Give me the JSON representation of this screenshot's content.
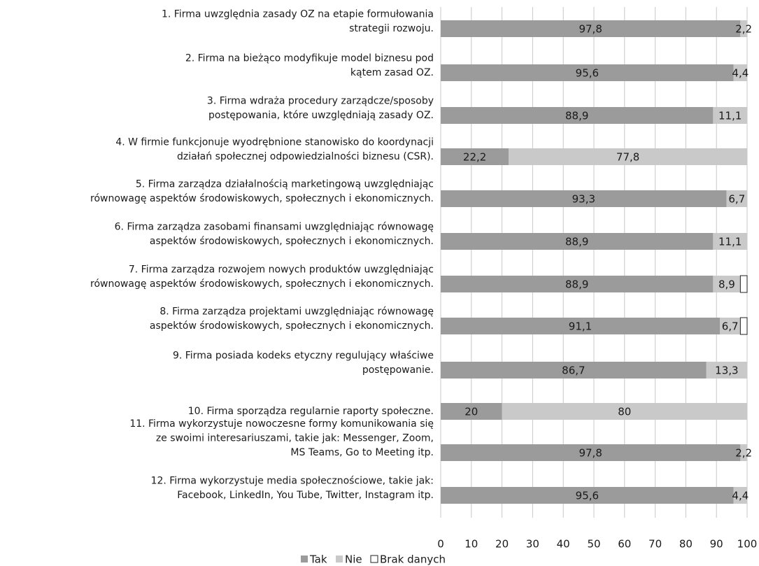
{
  "chart_data": {
    "type": "stacked_barh",
    "categories": [
      "1. Firma uwzględnia zasady OZ na etapie formułowania\nstrategii rozwoju.",
      "2. Firma na bieżąco modyfikuje model biznesu pod\nkątem zasad OZ.",
      "3. Firma wdraża procedury zarządcze/sposoby\npostępowania, które uwzględniają zasady OZ.",
      "4. W firmie funkcjonuje  wyodrębnione stanowisko do koordynacji\ndziałań społecznej odpowiedzialności biznesu (CSR).",
      "5. Firma zarządza działalnością marketingową uwzględniając\nrównowagę aspektów środowiskowych, społecznych i ekonomicznych.",
      "6. Firma zarządza zasobami finansami uwzględniając równowagę\naspektów środowiskowych, społecznych i ekonomicznych.",
      "7. Firma zarządza rozwojem nowych produktów uwzględniając\nrównowagę aspektów środowiskowych, społecznych i ekonomicznych.",
      "8. Firma zarządza projektami uwzględniając równowagę\naspektów środowiskowych, społecznych i ekonomicznych.",
      "9.  Firma posiada kodeks etyczny regulujący właściwe\npostępowanie.",
      "10. Firma sporządza regularnie raporty społeczne.",
      "11. Firma wykorzystuje nowoczesne formy komunikowania się\nze swoimi interesariuszami, takie jak: Messenger, Zoom,\nMS Teams, Go to Meeting itp.",
      "12. Firma wykorzystuje media społecznościowe, takie jak:\nFacebook, LinkedIn, You Tube, Twitter, Instagram itp."
    ],
    "series": [
      {
        "name": "Tak",
        "color": "#9b9b9b",
        "values": [
          97.8,
          95.6,
          88.9,
          22.2,
          93.3,
          88.9,
          88.9,
          91.1,
          86.7,
          20,
          97.8,
          95.6
        ],
        "value_labels": [
          "97,8",
          "95,6",
          "88,9",
          "22,2",
          "93,3",
          "88,9",
          "88,9",
          "91,1",
          "86,7",
          "20",
          "97,8",
          "95,6"
        ]
      },
      {
        "name": "Nie",
        "color": "#c9c9c9",
        "values": [
          2.2,
          4.4,
          11.1,
          77.8,
          6.7,
          11.1,
          8.9,
          6.7,
          13.3,
          80,
          2.2,
          4.4
        ],
        "value_labels": [
          "2,2",
          "4,4",
          "11,1",
          "77,8",
          "6,7",
          "11,1",
          "8,9",
          "6,7",
          "13,3",
          "80",
          "2,2",
          "4,4"
        ]
      },
      {
        "name": "Brak danych",
        "color": "#ffffff",
        "values": [
          0,
          0,
          0,
          0,
          0,
          0,
          2.2,
          2.2,
          0,
          0,
          0,
          0
        ],
        "value_labels": [
          null,
          null,
          null,
          null,
          null,
          null,
          null,
          null,
          null,
          null,
          null,
          null
        ]
      }
    ],
    "xlim": [
      0,
      100
    ],
    "xticks": [
      0,
      10,
      20,
      30,
      40,
      50,
      60,
      70,
      80,
      90,
      100
    ],
    "grid": true
  }
}
